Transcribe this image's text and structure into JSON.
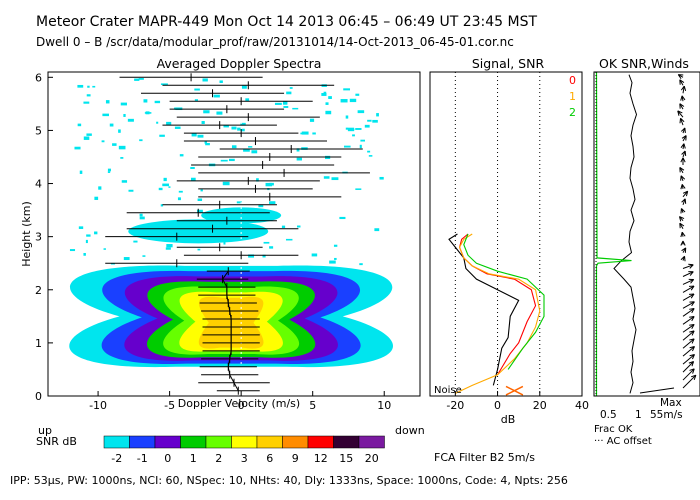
{
  "header": {
    "line1": "Meteor Crater  MAPR-449  Mon Oct 14 2013 06:45 – 06:49 UT 23:45 MST",
    "line2": "Dwell  0 –  B   /scr/data/modular_prof/raw/20131014/14-Oct-2013_06-45-01.cor.nc"
  },
  "footer": {
    "params": "IPP:  53μs,  PW: 1000ns,  NCI:  60,  NSpec: 10, NHts: 40,  Dly: 1333ns,  Space: 1000ns,  Code: 4,  Npts: 256",
    "filter": "FCA Filter B2   5m/s"
  },
  "colorbar": {
    "label": "SNR dB",
    "entries": [
      {
        "label": "-2",
        "color": "#00e5ee"
      },
      {
        "label": "-1",
        "color": "#1a40ff"
      },
      {
        "label": "0",
        "color": "#6600cc"
      },
      {
        "label": "1",
        "color": "#00cc00"
      },
      {
        "label": "2",
        "color": "#66ff00"
      },
      {
        "label": "3",
        "color": "#ffff00"
      },
      {
        "label": "6",
        "color": "#ffd000"
      },
      {
        "label": "9",
        "color": "#ff8c00"
      },
      {
        "label": "12",
        "color": "#ff0000"
      },
      {
        "label": "15",
        "color": "#330033"
      },
      {
        "label": "20",
        "color": "#7a1aa0"
      }
    ]
  },
  "chart_data": [
    {
      "type": "heatmap",
      "title": "Averaged Doppler Spectra",
      "xlabel": "Doppler Velocity (m/s)",
      "ylabel": "Height (km)",
      "xlim": [
        -13.5,
        12.5
      ],
      "ylim": [
        0,
        6.1
      ],
      "xticks": [
        "-10",
        "-5",
        "0",
        "5",
        "10"
      ],
      "yticks": [
        "0",
        "1",
        "2",
        "3",
        "4",
        "5",
        "6"
      ],
      "x_left_note": "up",
      "x_right_note": "down",
      "spectral_width_bars": [
        {
          "h": 0.1,
          "center": -0.2,
          "half_width": 1.5
        },
        {
          "h": 0.25,
          "center": -0.5,
          "half_width": 2.5
        },
        {
          "h": 0.4,
          "center": -0.8,
          "half_width": 2.0
        },
        {
          "h": 0.55,
          "center": -0.9,
          "half_width": 2.0
        },
        {
          "h": 0.7,
          "center": -0.8,
          "half_width": 2.0
        },
        {
          "h": 0.85,
          "center": -0.7,
          "half_width": 2.0
        },
        {
          "h": 1.0,
          "center": -0.7,
          "half_width": 2.0
        },
        {
          "h": 1.15,
          "center": -0.7,
          "half_width": 2.0
        },
        {
          "h": 1.3,
          "center": -0.7,
          "half_width": 2.0
        },
        {
          "h": 1.45,
          "center": -0.7,
          "half_width": 2.0
        },
        {
          "h": 1.6,
          "center": -0.8,
          "half_width": 2.0
        },
        {
          "h": 1.75,
          "center": -0.9,
          "half_width": 2.0
        },
        {
          "h": 1.9,
          "center": -1.0,
          "half_width": 2.0
        },
        {
          "h": 2.05,
          "center": -1.0,
          "half_width": 2.0
        },
        {
          "h": 2.2,
          "center": -1.3,
          "half_width": 1.8
        },
        {
          "h": 2.35,
          "center": -0.9,
          "half_width": 1.5
        },
        {
          "h": 2.5,
          "center": -4.5,
          "half_width": 5.0
        },
        {
          "h": 2.65,
          "center": 0.0,
          "half_width": 4.0
        },
        {
          "h": 2.8,
          "center": -1.5,
          "half_width": 3.0
        },
        {
          "h": 3.0,
          "center": -4.5,
          "half_width": 5.0
        },
        {
          "h": 3.15,
          "center": -2.0,
          "half_width": 6.0
        },
        {
          "h": 3.3,
          "center": -1.0,
          "half_width": 3.5
        },
        {
          "h": 3.45,
          "center": -3.0,
          "half_width": 5.0
        },
        {
          "h": 3.6,
          "center": -1.5,
          "half_width": 4.0
        },
        {
          "h": 3.75,
          "center": 2.0,
          "half_width": 5.0
        },
        {
          "h": 3.9,
          "center": 1.0,
          "half_width": 4.0
        },
        {
          "h": 4.05,
          "center": 0.5,
          "half_width": 5.0
        },
        {
          "h": 4.2,
          "center": 3.0,
          "half_width": 6.0
        },
        {
          "h": 4.35,
          "center": 1.5,
          "half_width": 5.0
        },
        {
          "h": 4.5,
          "center": 2.0,
          "half_width": 5.0
        },
        {
          "h": 4.65,
          "center": 3.5,
          "half_width": 5.0
        },
        {
          "h": 4.8,
          "center": 1.0,
          "half_width": 5.0
        },
        {
          "h": 4.95,
          "center": 0.0,
          "half_width": 4.0
        },
        {
          "h": 5.1,
          "center": -1.5,
          "half_width": 4.0
        },
        {
          "h": 5.25,
          "center": 0.5,
          "half_width": 5.0
        },
        {
          "h": 5.4,
          "center": -1.0,
          "half_width": 4.0
        },
        {
          "h": 5.55,
          "center": 0.0,
          "half_width": 5.0
        },
        {
          "h": 5.7,
          "center": -2.0,
          "half_width": 5.0
        },
        {
          "h": 5.85,
          "center": 0.5,
          "half_width": 6.0
        },
        {
          "h": 6.0,
          "center": -3.5,
          "half_width": 5.0
        }
      ]
    },
    {
      "type": "line",
      "title": "Signal, SNR",
      "xlabel": "dB",
      "xlim": [
        -32,
        40
      ],
      "ylim": [
        0,
        6.1
      ],
      "xticks": [
        "-20",
        "0",
        "20",
        "40"
      ],
      "noise_label": "Noise",
      "series_labels": [
        "0",
        "1",
        "2"
      ],
      "series_colors": [
        "#ff0000",
        "#ffaa00",
        "#00cc00"
      ],
      "series": [
        {
          "name": "black",
          "color": "#000000",
          "points": [
            [
              -2,
              0.2
            ],
            [
              0,
              0.5
            ],
            [
              2,
              0.9
            ],
            [
              5,
              1.1
            ],
            [
              6,
              1.5
            ],
            [
              10,
              1.8
            ],
            [
              0,
              2.0
            ],
            [
              -10,
              2.2
            ],
            [
              -15,
              2.4
            ],
            [
              -16,
              2.6
            ],
            [
              -20,
              2.8
            ],
            [
              -23,
              2.95
            ],
            [
              -19,
              3.05
            ]
          ]
        },
        {
          "name": "0",
          "color": "#ff0000",
          "points": [
            [
              0,
              0.4
            ],
            [
              6,
              0.8
            ],
            [
              10,
              1.0
            ],
            [
              14,
              1.4
            ],
            [
              18,
              1.7
            ],
            [
              16,
              2.0
            ],
            [
              8,
              2.2
            ],
            [
              -5,
              2.3
            ],
            [
              -12,
              2.45
            ],
            [
              -16,
              2.6
            ],
            [
              -18,
              2.8
            ],
            [
              -17,
              2.95
            ],
            [
              -14,
              3.05
            ]
          ]
        },
        {
          "name": "1",
          "color": "#ffaa00",
          "points": [
            [
              -20,
              0.05
            ],
            [
              -12,
              0.2
            ],
            [
              0,
              0.4
            ],
            [
              8,
              0.7
            ],
            [
              14,
              1.0
            ],
            [
              18,
              1.3
            ],
            [
              20,
              1.6
            ],
            [
              18,
              2.0
            ],
            [
              10,
              2.2
            ],
            [
              -4,
              2.3
            ],
            [
              -12,
              2.45
            ],
            [
              -16,
              2.6
            ],
            [
              -18,
              2.8
            ],
            [
              -16,
              2.95
            ],
            [
              -12,
              3.05
            ]
          ]
        },
        {
          "name": "2",
          "color": "#00cc00",
          "points": [
            [
              5,
              0.5
            ],
            [
              12,
              0.9
            ],
            [
              18,
              1.2
            ],
            [
              22,
              1.5
            ],
            [
              22,
              1.9
            ],
            [
              14,
              2.2
            ],
            [
              0,
              2.35
            ],
            [
              -10,
              2.5
            ],
            [
              -14,
              2.65
            ],
            [
              -16,
              2.85
            ],
            [
              -14,
              3.05
            ]
          ]
        }
      ]
    },
    {
      "type": "line",
      "title": "OK SNR,Winds",
      "xticks": [
        "0.5",
        "1"
      ],
      "speed_label": "55m/s",
      "max_label": "Max",
      "legend_frac": "Frac OK",
      "legend_offset": "··· AC offset",
      "snr_profile": [
        [
          0.72,
          0.05
        ],
        [
          0.78,
          0.25
        ],
        [
          0.74,
          0.45
        ],
        [
          0.78,
          0.65
        ],
        [
          0.76,
          0.85
        ],
        [
          0.8,
          1.05
        ],
        [
          0.84,
          1.25
        ],
        [
          0.78,
          1.45
        ],
        [
          0.82,
          1.65
        ],
        [
          0.78,
          1.85
        ],
        [
          0.74,
          2.05
        ],
        [
          0.6,
          2.2
        ],
        [
          0.4,
          2.4
        ],
        [
          0.55,
          2.55
        ],
        [
          0.75,
          2.7
        ],
        [
          0.7,
          2.9
        ],
        [
          0.72,
          3.1
        ],
        [
          0.8,
          3.3
        ],
        [
          0.74,
          3.5
        ],
        [
          0.82,
          3.7
        ],
        [
          0.78,
          3.9
        ],
        [
          0.72,
          4.1
        ],
        [
          0.74,
          4.3
        ],
        [
          0.8,
          4.5
        ],
        [
          0.78,
          4.7
        ],
        [
          0.74,
          4.9
        ],
        [
          0.78,
          5.1
        ],
        [
          0.85,
          5.3
        ],
        [
          0.78,
          5.5
        ],
        [
          0.72,
          5.7
        ],
        [
          0.76,
          5.9
        ],
        [
          0.7,
          6.05
        ]
      ],
      "frac_ok": [
        [
          0.05,
          0.0
        ],
        [
          0.05,
          2.45
        ],
        [
          0.08,
          2.5
        ],
        [
          0.75,
          2.55
        ],
        [
          0.06,
          2.6
        ],
        [
          0.05,
          6.1
        ]
      ],
      "winds_deg_from": [
        225,
        225,
        225,
        230,
        230,
        230,
        230,
        235,
        235,
        235,
        240,
        240,
        240,
        245,
        245,
        250,
        200,
        210,
        180,
        170,
        150,
        140,
        160,
        200,
        220,
        170,
        160,
        150,
        180,
        200,
        190,
        210,
        200,
        160,
        140,
        150,
        170,
        190,
        150,
        120
      ],
      "winds_speed": [
        40,
        35,
        33,
        33,
        33,
        32,
        32,
        30,
        30,
        30,
        29,
        28,
        28,
        26,
        25,
        24,
        10,
        12,
        8,
        10,
        14,
        12,
        10,
        14,
        16,
        10,
        12,
        14,
        16,
        14,
        12,
        14,
        12,
        16,
        18,
        14,
        12,
        16,
        14,
        12
      ]
    }
  ]
}
